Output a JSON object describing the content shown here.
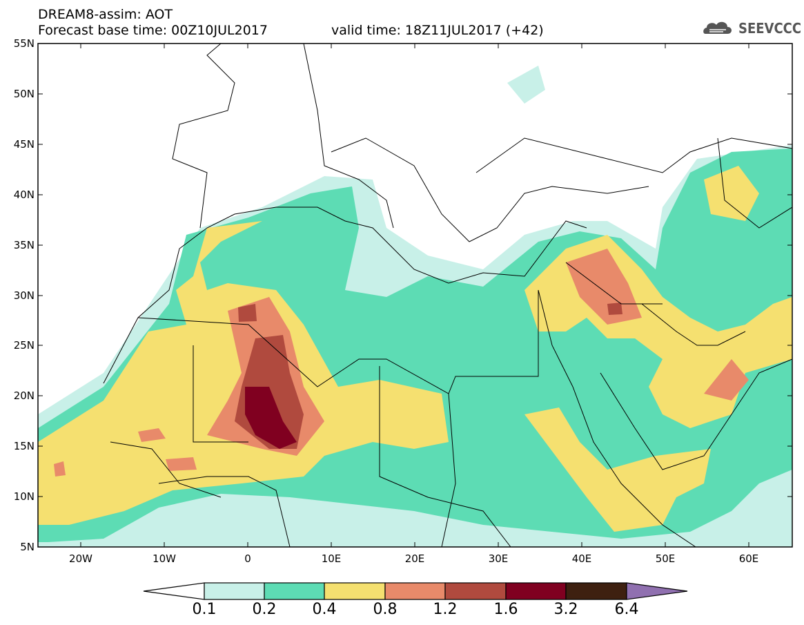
{
  "header": {
    "title_line1": "DREAM8-assim: AOT",
    "title_line2": "Forecast base time: 00Z10JUL2017",
    "valid_time": "valid time: 18Z11JUL2017 (+42)",
    "logo_text": "SEEVCCC",
    "logo_icon": "cloud-logo-icon"
  },
  "axes": {
    "lat_labels": [
      "55N",
      "50N",
      "45N",
      "40N",
      "35N",
      "30N",
      "25N",
      "20N",
      "15N",
      "10N",
      "5N"
    ],
    "lon_labels": [
      "20W",
      "10W",
      "0",
      "10E",
      "20E",
      "30E",
      "40E",
      "50E",
      "60E"
    ]
  },
  "colorbar": {
    "labels": [
      "0.1",
      "0.2",
      "0.4",
      "0.8",
      "1.2",
      "1.6",
      "3.2",
      "6.4"
    ],
    "colors": [
      "#c8f0e8",
      "#5ddcb4",
      "#f5e070",
      "#e88a6a",
      "#b04a3e",
      "#800020",
      "#3e2010",
      "#9070b0"
    ]
  },
  "map_colors": {
    "land_border": "#000000",
    "level1": "#c8f0e8",
    "level2": "#5ddcb4",
    "level3": "#f5e070",
    "level4": "#e88a6a",
    "level5": "#b04a3e",
    "level6": "#800020"
  }
}
